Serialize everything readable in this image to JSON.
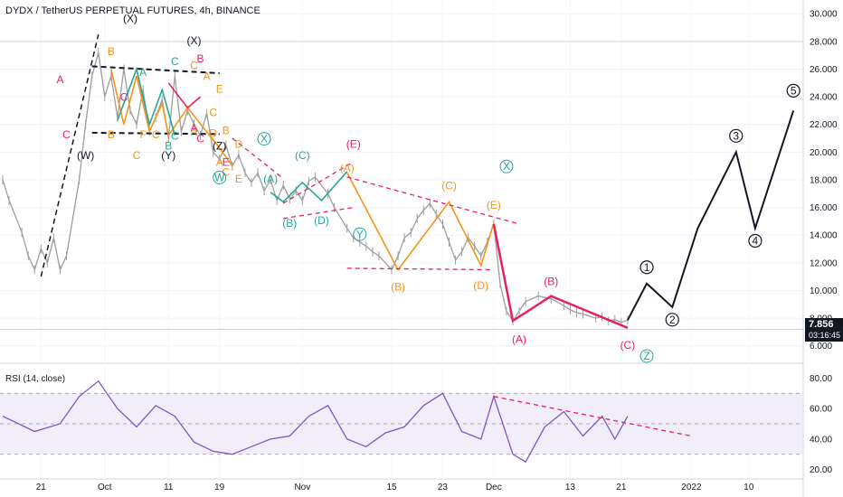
{
  "header": {
    "symbol": "DYDX / TetherUS PERPETUAL FUTURES, 4h, BINANCE"
  },
  "price_badge": {
    "price": "7.856",
    "countdown": "03:16:45",
    "color": "#131722"
  },
  "rsi_panel": {
    "label": "RSI (14, close)"
  },
  "colors": {
    "orange": "#f7931a",
    "teal": "#26a69a",
    "crimson": "#e91e63",
    "black": "#131722",
    "rsi_line": "#7e57c2",
    "rsi_band": "#ede7f6",
    "candle": "#9e9e9e",
    "trendline_pink": "#e91e63"
  },
  "chart_data": [
    {
      "type": "line",
      "panel": "price",
      "y_axis": {
        "ticks": [
          "30.000",
          "28.000",
          "26.000",
          "24.000",
          "22.000",
          "20.000",
          "18.000",
          "16.000",
          "14.000",
          "12.000",
          "10.000",
          "8.000",
          "6.000"
        ],
        "ylim": [
          5.0,
          30.6
        ],
        "position": "right"
      },
      "x_axis": {
        "ticks": [
          "21",
          "Oct",
          "11",
          "19",
          "Nov",
          "15",
          "23",
          "Dec",
          "13",
          "21",
          "2022",
          "10"
        ]
      },
      "grid": true,
      "series": [
        {
          "role": "price",
          "x": [
            "2021-09-15",
            "2021-09-16",
            "2021-09-18",
            "2021-09-19",
            "2021-09-20",
            "2021-09-21",
            "2021-09-22",
            "2021-09-23",
            "2021-09-24",
            "2021-09-25",
            "2021-09-27",
            "2021-09-28",
            "2021-09-29",
            "2021-09-30",
            "2021-10-01",
            "2021-10-02",
            "2021-10-03",
            "2021-10-04",
            "2021-10-05",
            "2021-10-06",
            "2021-10-07",
            "2021-10-08",
            "2021-10-09",
            "2021-10-10",
            "2021-10-11",
            "2021-10-12",
            "2021-10-13",
            "2021-10-14",
            "2021-10-15",
            "2021-10-16",
            "2021-10-17",
            "2021-10-18",
            "2021-10-19",
            "2021-10-20",
            "2021-10-21",
            "2021-10-22",
            "2021-10-23",
            "2021-10-24",
            "2021-10-25",
            "2021-10-26",
            "2021-10-27",
            "2021-10-28",
            "2021-10-29",
            "2021-10-30",
            "2021-10-31",
            "2021-11-01",
            "2021-11-02",
            "2021-11-03",
            "2021-11-05",
            "2021-11-06",
            "2021-11-08",
            "2021-11-09",
            "2021-11-10",
            "2021-11-11",
            "2021-11-12",
            "2021-11-13",
            "2021-11-15",
            "2021-11-16",
            "2021-11-17",
            "2021-11-18",
            "2021-11-19",
            "2021-11-20",
            "2021-11-21",
            "2021-11-22",
            "2021-11-23",
            "2021-11-24",
            "2021-11-25",
            "2021-11-26",
            "2021-11-27",
            "2021-11-28",
            "2021-11-29",
            "2021-11-30",
            "2021-12-01",
            "2021-12-02",
            "2021-12-03",
            "2021-12-04",
            "2021-12-05",
            "2021-12-06",
            "2021-12-08",
            "2021-12-10",
            "2021-12-12",
            "2021-12-13",
            "2021-12-14",
            "2021-12-15",
            "2021-12-17",
            "2021-12-18",
            "2021-12-19",
            "2021-12-20",
            "2021-12-21",
            "2021-12-22"
          ],
          "y": [
            18.0,
            16.5,
            14.2,
            12.5,
            11.5,
            13.0,
            12.0,
            13.8,
            11.5,
            12.5,
            18.0,
            22.0,
            25.5,
            27.2,
            24.0,
            25.5,
            22.5,
            26.0,
            23.0,
            22.0,
            24.5,
            21.5,
            22.5,
            23.8,
            21.0,
            25.5,
            21.5,
            23.0,
            22.0,
            21.2,
            22.8,
            20.0,
            19.5,
            20.5,
            19.0,
            19.8,
            18.5,
            17.8,
            18.5,
            17.2,
            18.0,
            16.5,
            17.6,
            16.6,
            17.2,
            16.5,
            17.9,
            18.2,
            17.0,
            16.0,
            14.5,
            13.8,
            13.5,
            13.2,
            12.8,
            12.5,
            11.5,
            12.5,
            13.8,
            14.2,
            15.2,
            15.8,
            16.3,
            15.5,
            14.8,
            13.5,
            12.2,
            12.8,
            13.8,
            13.2,
            12.5,
            13.5,
            14.8,
            10.5,
            8.5,
            7.8,
            8.5,
            9.2,
            9.6,
            9.4,
            8.9,
            8.6,
            8.4,
            8.3,
            8.0,
            8.1,
            7.8,
            7.9,
            7.7,
            7.856
          ]
        },
        {
          "role": "projection",
          "name": "",
          "labels": [
            "1",
            "2",
            "3",
            "4",
            "5"
          ],
          "x": [
            "2021-12-22",
            "2021-12-25",
            "2021-12-29",
            "2022-01-02",
            "2022-01-08",
            "2022-01-11",
            "2022-01-17"
          ],
          "y": [
            7.856,
            10.5,
            8.8,
            14.5,
            20.0,
            14.5,
            23.0
          ]
        }
      ],
      "annotations": {
        "orange": [
          "B",
          "B",
          "C",
          "F",
          "C",
          "C",
          "A",
          "A",
          "C",
          "D",
          "E",
          "B",
          "A",
          "C",
          "D",
          "E",
          "(A)",
          "(B)",
          "(C)",
          "(D)",
          "(E)"
        ],
        "teal": [
          "A",
          "C",
          "B",
          "C",
          "(A)",
          "(B)",
          "(C)",
          "(D)"
        ],
        "crimson": [
          "A",
          "B",
          "C",
          "E",
          "A",
          "C",
          "C",
          "(E)",
          "(A)",
          "(B)",
          "(C)"
        ],
        "black": [
          "(W)",
          "(X)",
          "(Y)",
          "(X)",
          "(Z)"
        ],
        "circled_teal": [
          "W",
          "X",
          "Y",
          "X",
          "Z"
        ],
        "circled_black": [
          "1",
          "2",
          "3",
          "4",
          "5"
        ]
      }
    },
    {
      "type": "line",
      "panel": "rsi",
      "title": "RSI (14, close)",
      "y_axis": {
        "ticks": [
          "80.00",
          "60.00",
          "40.00",
          "20.00"
        ],
        "ylim": [
          15,
          88
        ],
        "position": "right"
      },
      "bands": {
        "upper": 70,
        "middle": 50,
        "lower": 30
      },
      "series": [
        {
          "role": "rsi",
          "x": [
            "2021-09-15",
            "2021-09-20",
            "2021-09-24",
            "2021-09-27",
            "2021-09-30",
            "2021-10-03",
            "2021-10-06",
            "2021-10-09",
            "2021-10-12",
            "2021-10-15",
            "2021-10-18",
            "2021-10-21",
            "2021-10-24",
            "2021-10-27",
            "2021-10-30",
            "2021-11-02",
            "2021-11-05",
            "2021-11-08",
            "2021-11-11",
            "2021-11-14",
            "2021-11-17",
            "2021-11-20",
            "2021-11-23",
            "2021-11-26",
            "2021-11-29",
            "2021-12-01",
            "2021-12-04",
            "2021-12-06",
            "2021-12-09",
            "2021-12-12",
            "2021-12-15",
            "2021-12-18",
            "2021-12-20",
            "2021-12-22"
          ],
          "y": [
            55,
            45,
            50,
            68,
            78,
            60,
            48,
            62,
            55,
            38,
            32,
            30,
            35,
            40,
            42,
            55,
            62,
            40,
            35,
            44,
            48,
            62,
            70,
            45,
            40,
            68,
            30,
            25,
            48,
            58,
            42,
            55,
            40,
            55
          ]
        }
      ]
    }
  ]
}
